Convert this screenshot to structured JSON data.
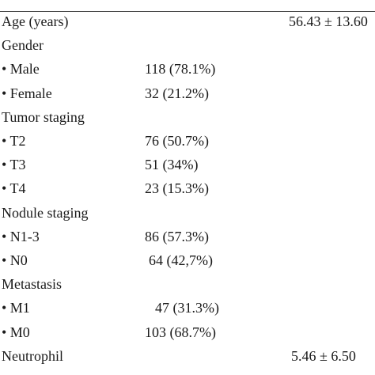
{
  "table": {
    "rows": [
      {
        "label": "Age (years)",
        "mean": "56.43 ± 13.60"
      },
      {
        "label": "Gender"
      },
      {
        "label": "• Male",
        "n": "118 (78.1%)"
      },
      {
        "label": "• Female",
        "n": "32 (21.2%)"
      },
      {
        "label": "Tumor staging"
      },
      {
        "label": "• T2",
        "n": "76 (50.7%)"
      },
      {
        "label": "• T3",
        "n": "51 (34%)"
      },
      {
        "label": "• T4",
        "n": "23 (15.3%)"
      },
      {
        "label": "Nodule staging"
      },
      {
        "label": "• N1-3",
        "n": "86 (57.3%)"
      },
      {
        "label": "• N0",
        "n": "64 (42,7%)"
      },
      {
        "label": "Metastasis"
      },
      {
        "label": "• M1",
        "n": "47 (31.3%)"
      },
      {
        "label": "• M0",
        "n": "103 (68.7%)"
      },
      {
        "label": "Neutrophil",
        "mean": "5.46 ± 6.50"
      }
    ]
  }
}
